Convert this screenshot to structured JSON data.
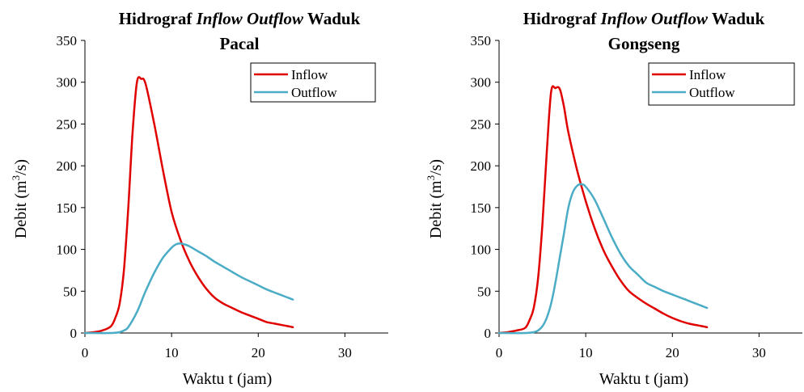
{
  "chart_data": [
    {
      "type": "line",
      "title": {
        "prefix": "Hidrograf ",
        "italic": "Inflow Outflow",
        "suffix": " Waduk",
        "line2": "Pacal"
      },
      "xlabel": "Waktu t (jam)",
      "ylabel": {
        "main": "Debit (m",
        "sup": "3",
        "tail": "/s)"
      },
      "xlim": [
        0,
        35
      ],
      "ylim": [
        0,
        350
      ],
      "xticks": [
        0,
        10,
        20,
        30
      ],
      "yticks": [
        0,
        50,
        100,
        150,
        200,
        250,
        300,
        350
      ],
      "grid": false,
      "legend": "top-right",
      "series": [
        {
          "name": "Inflow",
          "color": "#e00000",
          "x": [
            0,
            1,
            2,
            3,
            3.5,
            4,
            4.5,
            5,
            5.5,
            6,
            6.5,
            7,
            8,
            9,
            10,
            11,
            12,
            13,
            14,
            15,
            16,
            17,
            18,
            19,
            20,
            21,
            22,
            23,
            24
          ],
          "y": [
            0,
            1,
            3,
            8,
            18,
            35,
            75,
            150,
            240,
            300,
            304,
            298,
            250,
            195,
            145,
            112,
            87,
            68,
            53,
            42,
            35,
            30,
            25,
            21,
            17,
            13,
            11,
            9,
            7
          ]
        },
        {
          "name": "Outflow",
          "color": "#4bacc6",
          "x": [
            0,
            3,
            4,
            4.5,
            5,
            6,
            7,
            8,
            9,
            10,
            10.5,
            11,
            11.5,
            12,
            13,
            14,
            15,
            16,
            17,
            18,
            19,
            20,
            21,
            22,
            23,
            24
          ],
          "y": [
            0,
            0,
            1,
            3,
            7,
            25,
            50,
            72,
            90,
            102,
            106,
            107,
            106,
            104,
            98,
            92,
            85,
            79,
            73,
            67,
            62,
            57,
            52,
            48,
            44,
            40
          ]
        }
      ]
    },
    {
      "type": "line",
      "title": {
        "prefix": "Hidrograf ",
        "italic": "Inflow Outflow",
        "suffix": " Waduk",
        "line2": "Gongseng"
      },
      "xlabel": "Waktu t (jam)",
      "ylabel": {
        "main": "Debit (m",
        "sup": "3",
        "tail": "/s)"
      },
      "xlim": [
        0,
        35
      ],
      "ylim": [
        0,
        350
      ],
      "xticks": [
        0,
        10,
        20,
        30
      ],
      "yticks": [
        0,
        50,
        100,
        150,
        200,
        250,
        300,
        350
      ],
      "grid": false,
      "legend": "top-right",
      "series": [
        {
          "name": "Inflow",
          "color": "#e00000",
          "x": [
            0,
            1,
            2,
            3,
            3.5,
            4,
            4.5,
            5,
            5.5,
            6,
            6.5,
            7,
            7.5,
            8,
            9,
            10,
            11,
            12,
            13,
            14,
            15,
            16,
            17,
            18,
            19,
            20,
            21,
            22,
            23,
            24
          ],
          "y": [
            0,
            1,
            3,
            6,
            15,
            30,
            65,
            130,
            215,
            288,
            293,
            292,
            270,
            240,
            195,
            158,
            126,
            100,
            80,
            63,
            50,
            42,
            35,
            29,
            23,
            18,
            14,
            11,
            9,
            7
          ]
        },
        {
          "name": "Outflow",
          "color": "#4bacc6",
          "x": [
            0,
            3,
            4,
            4.5,
            5,
            5.5,
            6,
            6.5,
            7,
            7.5,
            8,
            8.5,
            9,
            9.5,
            10,
            11,
            12,
            13,
            14,
            15,
            16,
            17,
            18,
            19,
            20,
            21,
            22,
            23,
            24
          ],
          "y": [
            0,
            0,
            1,
            3,
            8,
            18,
            35,
            60,
            90,
            120,
            150,
            168,
            176,
            178,
            175,
            160,
            138,
            115,
            95,
            80,
            70,
            60,
            55,
            50,
            46,
            42,
            38,
            34,
            30
          ]
        }
      ]
    }
  ]
}
